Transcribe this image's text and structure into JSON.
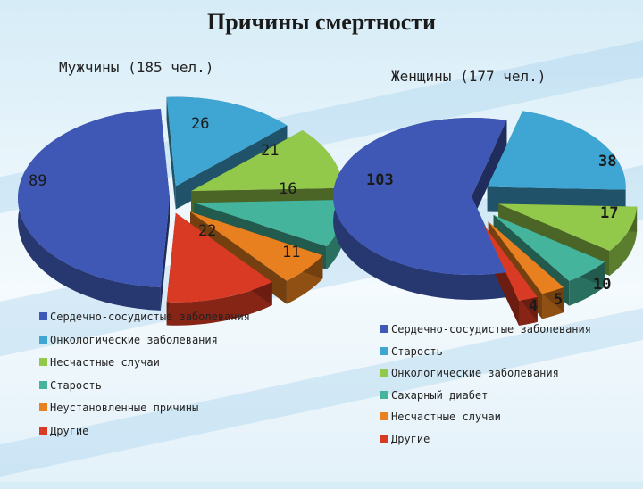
{
  "title": "Причины смертности",
  "colors": {
    "blue": "#3f58b5",
    "cyan": "#3fa6d4",
    "green": "#93c94a",
    "teal": "#44b59c",
    "orange": "#e8801f",
    "red": "#d83a24"
  },
  "chart_data": [
    {
      "type": "pie",
      "title": "Мужчины (185 чел.)",
      "slices": [
        {
          "label": "Сердечно-сосудистые заболевания",
          "value": 89,
          "color": "#3f58b5"
        },
        {
          "label": "Онкологические заболевания",
          "value": 26,
          "color": "#3fa6d4"
        },
        {
          "label": "Несчастные случаи",
          "value": 21,
          "color": "#93c94a"
        },
        {
          "label": "Старость",
          "value": 16,
          "color": "#44b59c"
        },
        {
          "label": "Неустановленные причины",
          "value": 11,
          "color": "#e8801f"
        },
        {
          "label": "Другие",
          "value": 22,
          "color": "#d83a24"
        }
      ]
    },
    {
      "type": "pie",
      "title": "Женщины (177 чел.)",
      "slices": [
        {
          "label": "Сердечно-сосудистые заболевания",
          "value": 103,
          "color": "#3f58b5"
        },
        {
          "label": "Старость",
          "value": 38,
          "color": "#3fa6d4"
        },
        {
          "label": "Онкологические заболевания",
          "value": 17,
          "color": "#93c94a"
        },
        {
          "label": "Сахарный диабет",
          "value": 10,
          "color": "#44b59c"
        },
        {
          "label": "Несчастные случаи",
          "value": 5,
          "color": "#e8801f"
        },
        {
          "label": "Другие",
          "value": 4,
          "color": "#d83a24"
        }
      ]
    }
  ]
}
